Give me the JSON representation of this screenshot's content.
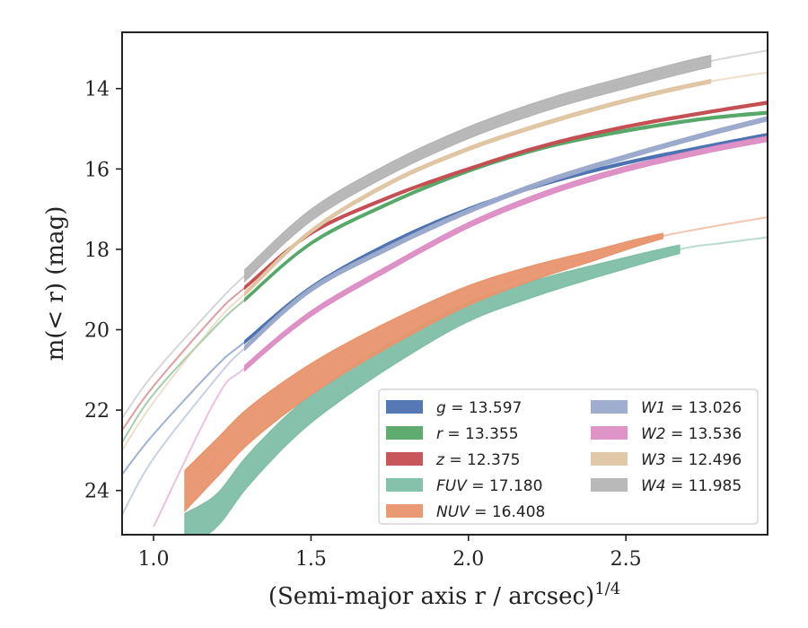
{
  "chart_data": {
    "type": "line",
    "xlabel": "(Semi-major axis r / arcsec)",
    "xlabel_sup": "1/4",
    "ylabel": "m(< r) (mag)",
    "xlim": [
      0.9,
      2.95
    ],
    "ylim": [
      25.1,
      12.6
    ],
    "y_inverted": true,
    "x_ticks": [
      {
        "value": 1.0,
        "label": "1.0"
      },
      {
        "value": 1.5,
        "label": "1.5"
      },
      {
        "value": 2.0,
        "label": "2.0"
      },
      {
        "value": 2.5,
        "label": "2.5"
      }
    ],
    "y_ticks": [
      {
        "value": 14,
        "label": "14"
      },
      {
        "value": 16,
        "label": "16"
      },
      {
        "value": 18,
        "label": "18"
      },
      {
        "value": 20,
        "label": "20"
      },
      {
        "value": 22,
        "label": "22"
      },
      {
        "value": 24,
        "label": "24"
      }
    ],
    "grid": false,
    "legend_position": "lower-right",
    "legend_columns": 2,
    "series": [
      {
        "name": "g",
        "legend_value": "13.597",
        "color": "#4c72b0",
        "x": [
          0.9,
          1.0,
          1.2,
          1.29,
          1.5,
          1.75,
          2.0,
          2.25,
          2.5,
          2.75,
          2.95
        ],
        "y": [
          23.6,
          22.6,
          20.9,
          20.3,
          18.95,
          17.85,
          17.0,
          16.35,
          15.85,
          15.45,
          15.15
        ],
        "band_start": 1.29,
        "band_end": 2.95,
        "band_width": 0.06
      },
      {
        "name": "r",
        "legend_value": "13.355",
        "color": "#55a868",
        "x": [
          0.9,
          1.0,
          1.2,
          1.29,
          1.5,
          1.75,
          2.0,
          2.25,
          2.5,
          2.75,
          2.95
        ],
        "y": [
          22.8,
          21.6,
          19.9,
          19.25,
          17.85,
          16.85,
          16.05,
          15.45,
          15.05,
          14.75,
          14.6
        ],
        "band_start": 1.29,
        "band_end": 2.95,
        "band_width": 0.06
      },
      {
        "name": "z",
        "legend_value": "12.375",
        "color": "#c44e52",
        "x": [
          0.9,
          1.0,
          1.2,
          1.29,
          1.5,
          1.75,
          2.0,
          2.25,
          2.5,
          2.75,
          2.95
        ],
        "y": [
          22.5,
          21.4,
          19.6,
          18.95,
          17.6,
          16.7,
          16.0,
          15.4,
          14.95,
          14.6,
          14.35
        ],
        "band_start": 1.29,
        "band_end": 2.95,
        "band_width": 0.06
      },
      {
        "name": "FUV",
        "legend_value": "17.180",
        "color": "#7fbfa6",
        "x": [
          1.1,
          1.2,
          1.3,
          1.45,
          1.6,
          1.8,
          2.0,
          2.2,
          2.4,
          2.67,
          2.8,
          2.95
        ],
        "y": [
          25.0,
          24.5,
          23.5,
          22.3,
          21.4,
          20.4,
          19.55,
          19.0,
          18.55,
          18.0,
          17.85,
          17.7
        ],
        "band_start": 1.1,
        "band_end": 2.67,
        "band_width": 0.85,
        "band_width_end": 0.2
      },
      {
        "name": "NUV",
        "legend_value": "16.408",
        "color": "#e8956e",
        "x": [
          1.1,
          1.2,
          1.3,
          1.45,
          1.6,
          1.8,
          2.0,
          2.2,
          2.4,
          2.6,
          2.8,
          2.95
        ],
        "y": [
          24.0,
          23.2,
          22.4,
          21.5,
          20.75,
          19.9,
          19.15,
          18.6,
          18.15,
          17.7,
          17.4,
          17.2
        ],
        "band_start": 1.1,
        "band_end": 2.62,
        "band_width": 1.0,
        "band_width_end": 0.12
      },
      {
        "name": "W1",
        "legend_value": "13.026",
        "color": "#9aa9cb",
        "x": [
          0.9,
          1.0,
          1.2,
          1.29,
          1.5,
          1.75,
          2.0,
          2.25,
          2.5,
          2.75,
          2.95
        ],
        "y": [
          24.6,
          23.2,
          21.2,
          20.45,
          19.0,
          17.95,
          17.05,
          16.3,
          15.7,
          15.15,
          14.75
        ],
        "band_start": 1.29,
        "band_end": 2.95,
        "band_width": 0.1
      },
      {
        "name": "W2",
        "legend_value": "13.536",
        "color": "#dd8ec4",
        "x": [
          1.0,
          1.2,
          1.29,
          1.5,
          1.75,
          2.0,
          2.25,
          2.5,
          2.75,
          2.95
        ],
        "y": [
          24.9,
          21.7,
          20.95,
          19.6,
          18.45,
          17.4,
          16.6,
          16.0,
          15.55,
          15.25
        ],
        "band_start": 1.29,
        "band_end": 2.95,
        "band_width": 0.12
      },
      {
        "name": "W3",
        "legend_value": "12.496",
        "color": "#dfc5a2",
        "x": [
          0.9,
          1.0,
          1.2,
          1.29,
          1.5,
          1.75,
          2.0,
          2.25,
          2.5,
          2.75,
          2.95
        ],
        "y": [
          23.0,
          21.8,
          19.8,
          19.1,
          17.55,
          16.35,
          15.5,
          14.85,
          14.3,
          13.85,
          13.6
        ],
        "band_start": 1.29,
        "band_end": 2.78,
        "band_width": 0.08
      },
      {
        "name": "W4",
        "legend_value": "11.985",
        "color": "#b5b5b5",
        "x": [
          0.9,
          1.0,
          1.2,
          1.29,
          1.5,
          1.75,
          2.0,
          2.25,
          2.5,
          2.75,
          2.95
        ],
        "y": [
          22.2,
          21.1,
          19.35,
          18.65,
          17.15,
          16.0,
          15.1,
          14.4,
          13.85,
          13.35,
          13.05
        ],
        "band_start": 1.29,
        "band_end": 2.78,
        "band_width": 0.28
      }
    ]
  }
}
